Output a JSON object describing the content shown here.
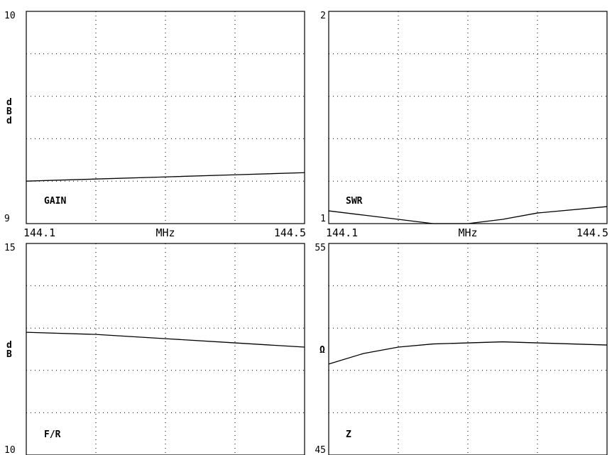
{
  "chart_data": [
    {
      "type": "line",
      "series": [
        {
          "values": [
            9.2,
            9.21,
            9.22,
            9.23,
            9.24
          ]
        }
      ],
      "x": [
        144.1,
        144.2,
        144.3,
        144.4,
        144.5
      ],
      "xlim": [
        144.1,
        144.5
      ],
      "ylim": [
        9,
        10
      ],
      "ytick_top": "10",
      "ytick_bottom": "9",
      "unit_label": [
        "d",
        "B",
        "d"
      ],
      "plot_label": "GAIN",
      "grid": true
    },
    {
      "type": "line",
      "series": [
        {
          "values": [
            1.06,
            1.04,
            1.02,
            1.0,
            1.0,
            1.02,
            1.05,
            1.08
          ]
        }
      ],
      "x": [
        144.1,
        144.15,
        144.2,
        144.25,
        144.3,
        144.35,
        144.4,
        144.5
      ],
      "xlim": [
        144.1,
        144.5
      ],
      "ylim": [
        1,
        2
      ],
      "ytick_top": "2",
      "ytick_bottom": "1",
      "unit_label": [],
      "plot_label": "SWR",
      "grid": true
    },
    {
      "type": "line",
      "series": [
        {
          "values": [
            12.9,
            12.85,
            12.75,
            12.65,
            12.55
          ]
        }
      ],
      "x": [
        144.1,
        144.2,
        144.3,
        144.4,
        144.5
      ],
      "xlim": [
        144.1,
        144.5
      ],
      "ylim": [
        10,
        15
      ],
      "ytick_top": "15",
      "ytick_bottom": "10",
      "unit_label": [
        "d",
        "B"
      ],
      "plot_label": "F/R",
      "grid": true
    },
    {
      "type": "line",
      "series": [
        {
          "values": [
            49.3,
            49.8,
            50.1,
            50.25,
            50.3,
            50.35,
            50.3,
            50.2
          ]
        }
      ],
      "x": [
        144.1,
        144.15,
        144.2,
        144.25,
        144.3,
        144.35,
        144.4,
        144.5
      ],
      "xlim": [
        144.1,
        144.5
      ],
      "ylim": [
        45,
        55
      ],
      "ytick_top": "55",
      "ytick_bottom": "45",
      "unit_label": [
        "Ω"
      ],
      "plot_label": "Z",
      "grid": true
    }
  ],
  "x_axis": {
    "left": "144.1",
    "center": "MHz",
    "right": "144.5"
  }
}
